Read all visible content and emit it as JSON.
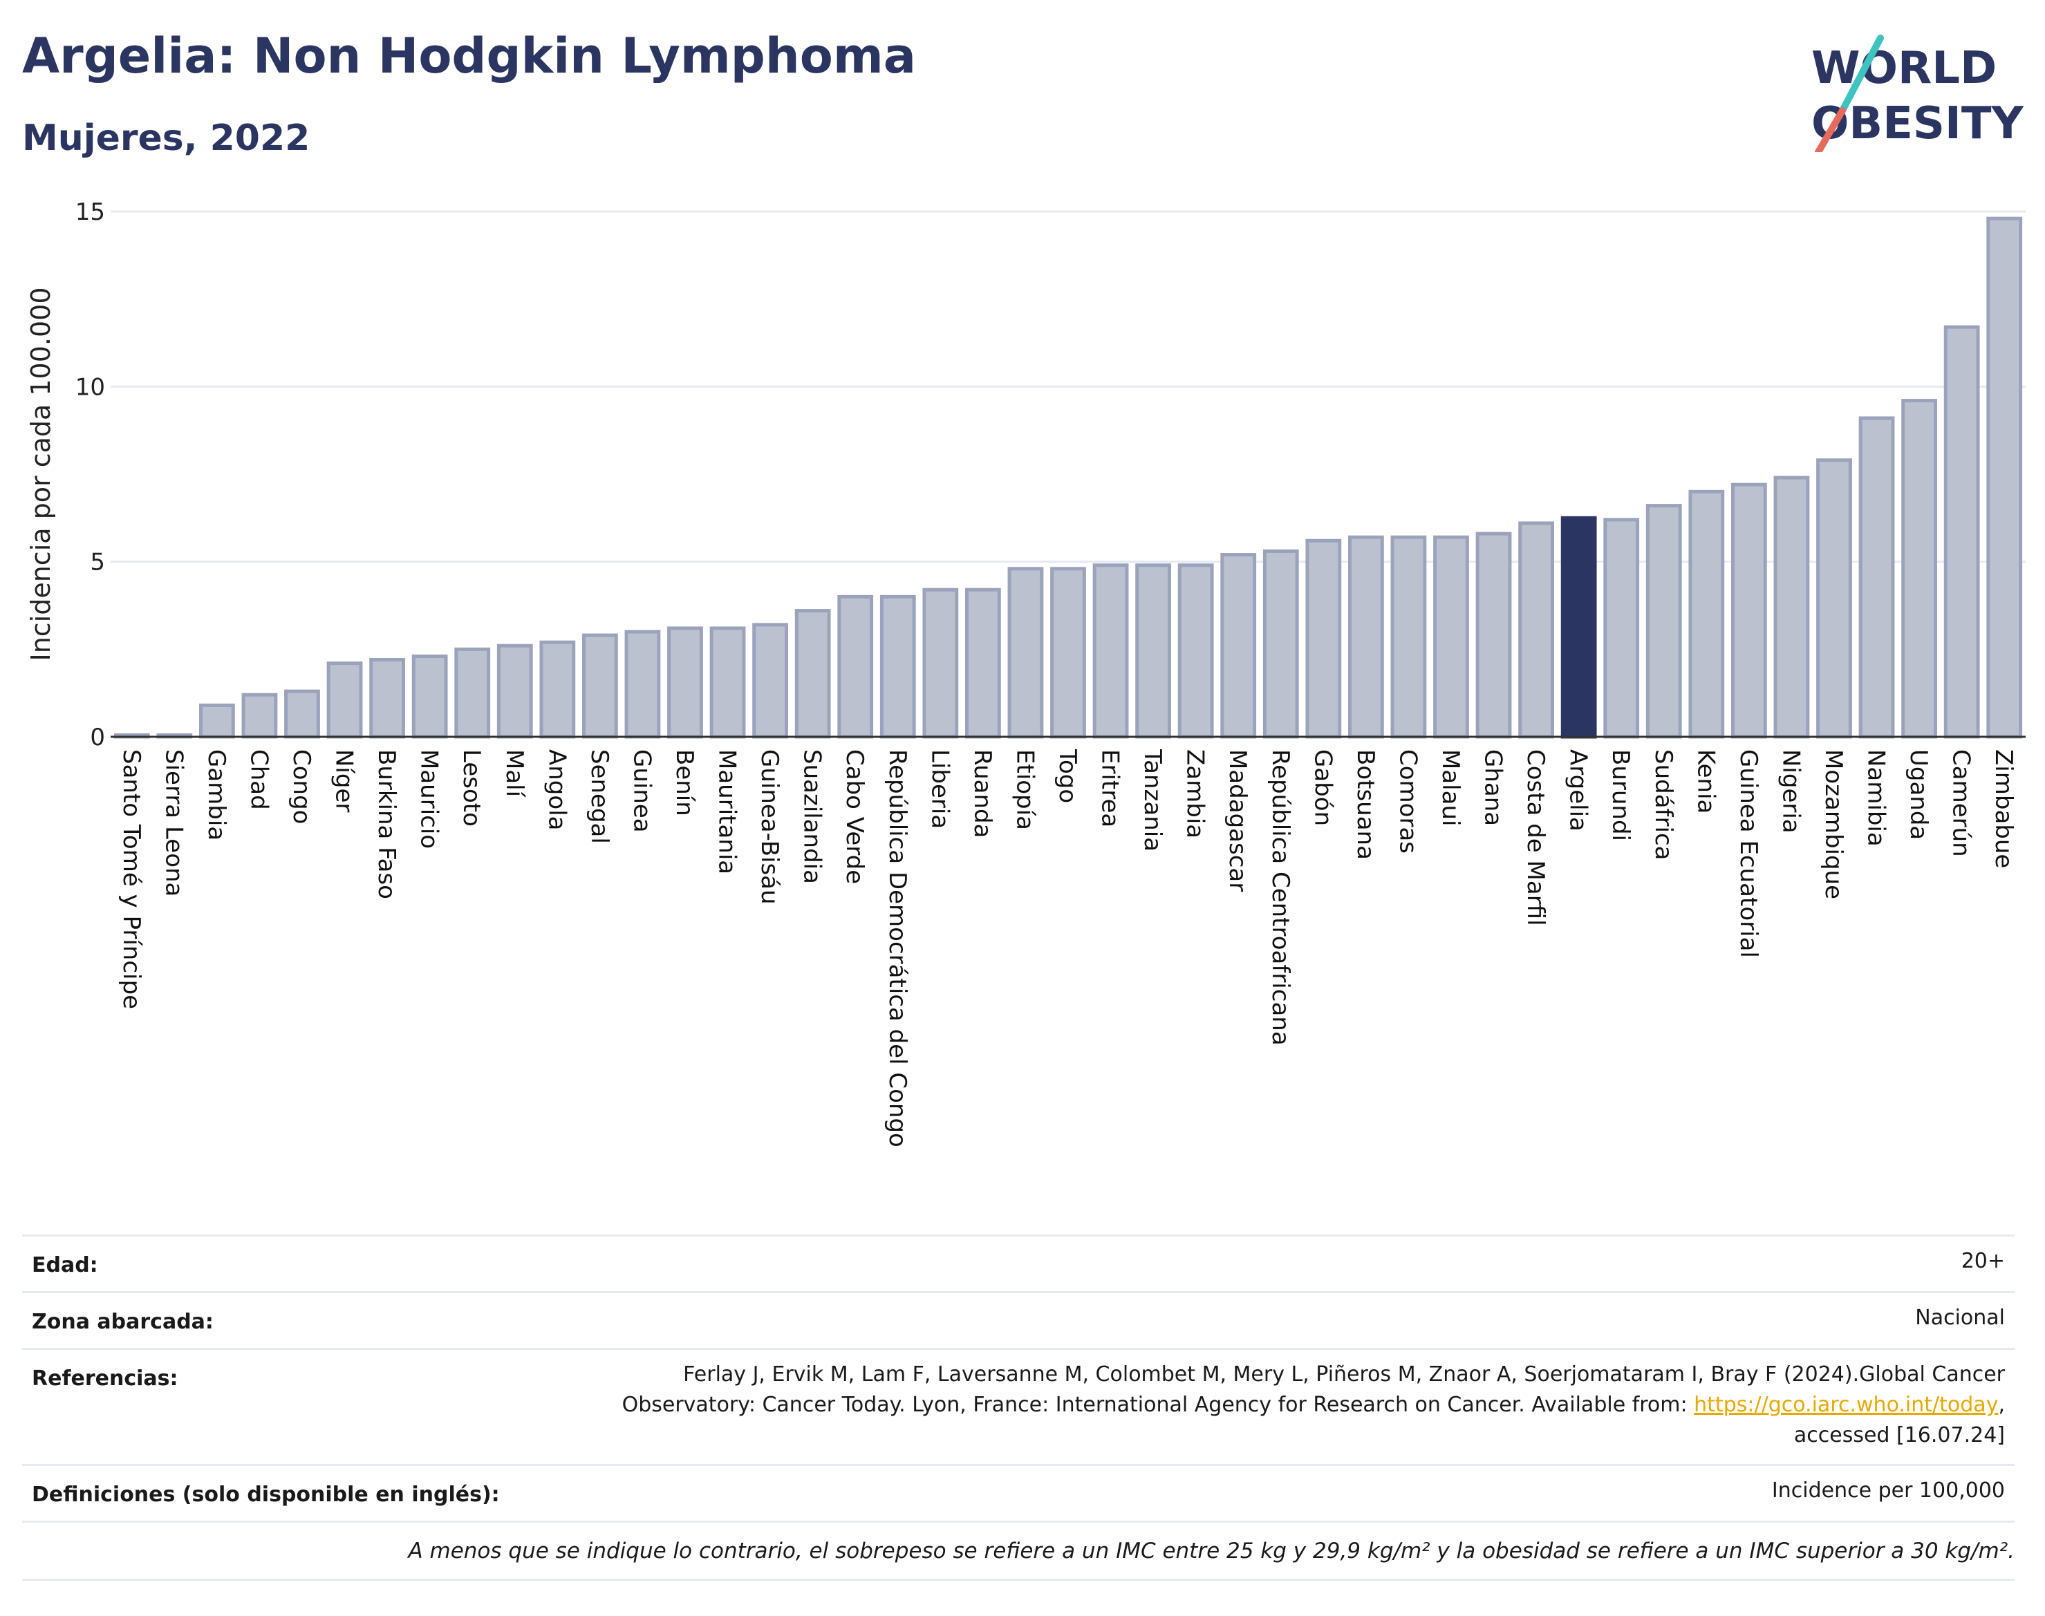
{
  "header": {
    "title": "Argelia: Non Hodgkin Lymphoma",
    "subtitle": "Mujeres, 2022",
    "logo_line1": "WORLD",
    "logo_line2": "OBESITY"
  },
  "colors": {
    "bar": "#bcc1d0",
    "bar_stroke": "#9ba3bc",
    "highlight": "#2b3562",
    "title": "#2b3562",
    "logo_teal": "#3ec3c1",
    "logo_red": "#e76b5c"
  },
  "chart_data": {
    "type": "bar",
    "title": "Argelia: Non Hodgkin Lymphoma",
    "subtitle": "Mujeres, 2022",
    "ylabel": "Incidencia por cada 100.000",
    "xlabel": "",
    "ylim": [
      0,
      15
    ],
    "yticks": [
      0,
      5,
      10,
      15
    ],
    "grid": true,
    "highlight": "Argelia",
    "categories": [
      "Santo Tomé y Príncipe",
      "Sierra Leona",
      "Gambia",
      "Chad",
      "Congo",
      "Níger",
      "Burkina Faso",
      "Mauricio",
      "Lesoto",
      "Malí",
      "Angola",
      "Senegal",
      "Guinea",
      "Benín",
      "Mauritania",
      "Guinea-Bisáu",
      "Suazilandia",
      "Cabo Verde",
      "República Democrática del Congo",
      "Liberia",
      "Ruanda",
      "Etiopía",
      "Togo",
      "Eritrea",
      "Tanzania",
      "Zambia",
      "Madagascar",
      "República Centroafricana",
      "Gabón",
      "Botsuana",
      "Comoras",
      "Malaui",
      "Ghana",
      "Costa de Marfil",
      "Argelia",
      "Burundi",
      "Sudáfrica",
      "Kenia",
      "Guinea Ecuatorial",
      "Nigeria",
      "Mozambique",
      "Namibia",
      "Uganda",
      "Camerún",
      "Zimbabue"
    ],
    "values": [
      0.05,
      0.05,
      0.9,
      1.2,
      1.3,
      2.1,
      2.2,
      2.3,
      2.5,
      2.6,
      2.7,
      2.9,
      3.0,
      3.1,
      3.1,
      3.2,
      3.6,
      4.0,
      4.0,
      4.2,
      4.2,
      4.8,
      4.8,
      4.9,
      4.9,
      4.9,
      5.2,
      5.3,
      5.6,
      5.7,
      5.7,
      5.7,
      5.8,
      6.1,
      6.25,
      6.2,
      6.6,
      7.0,
      7.2,
      7.4,
      7.9,
      9.1,
      9.6,
      11.7,
      14.8
    ]
  },
  "info": {
    "age_label": "Edad:",
    "age_value": "20+",
    "zone_label": "Zona abarcada:",
    "zone_value": "Nacional",
    "refs_label": "Referencias:",
    "refs_line1": "Ferlay J, Ervik M, Lam F, Laversanne M, Colombet M, Mery L, Piñeros M, Znaor A, Soerjomataram I, Bray F (2024).Global Cancer",
    "refs_line2_pre": "Observatory: Cancer Today. Lyon, France: International Agency for Research on Cancer. Available from: ",
    "refs_link": "https://gco.iarc.who.int/today",
    "refs_line2_post": ",",
    "refs_line3": "accessed [16.07.24]",
    "defs_label": "Definiciones (solo disponible en inglés):",
    "defs_value": "Incidence per 100,000",
    "note": "A menos que se indique lo contrario, el sobrepeso se refiere a un IMC entre 25 kg y 29,9 kg/m² y la obesidad se refiere a un IMC superior a 30 kg/m²."
  }
}
